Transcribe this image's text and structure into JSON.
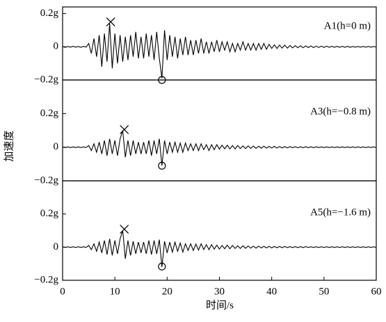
{
  "chart_data": [
    {
      "type": "line",
      "label": "A1(h=0 m)",
      "color": "#000000",
      "xlim": [
        0,
        60
      ],
      "ylim": [
        -0.2,
        0.24
      ],
      "yticks": [
        {
          "value": -0.2,
          "label": "−0.2g"
        },
        0,
        {
          "value": 0.2,
          "label": "0.2g"
        }
      ],
      "max_point": [
        9.2,
        0.15
      ],
      "min_point": [
        19,
        -0.2
      ],
      "x": [
        0,
        0.5,
        1,
        1.5,
        2,
        2.5,
        3,
        3.5,
        4,
        4.5,
        5,
        5.5,
        6,
        6.5,
        7,
        7.5,
        8,
        8.5,
        9,
        9.5,
        10,
        10.5,
        11,
        11.5,
        12,
        12.5,
        13,
        13.5,
        14,
        14.5,
        15,
        15.5,
        16,
        16.5,
        17,
        17.5,
        18,
        18.5,
        19,
        19.5,
        20,
        20.5,
        21,
        21.5,
        22,
        22.5,
        23,
        23.5,
        24,
        24.5,
        25,
        25.5,
        26,
        26.5,
        27,
        27.5,
        28,
        28.5,
        29,
        29.5,
        30,
        30.5,
        31,
        31.5,
        32,
        32.5,
        33,
        33.5,
        34,
        34.5,
        35,
        35.5,
        36,
        36.5,
        37,
        37.5,
        38,
        38.5,
        39,
        39.5,
        40,
        40.5,
        41,
        41.5,
        42,
        42.5,
        43,
        43.5,
        44,
        44.5,
        45,
        45.5,
        46,
        46.5,
        47,
        47.5,
        48,
        48.5,
        49,
        49.5,
        50,
        50.5,
        51,
        51.5,
        52,
        52.5,
        53,
        53.5,
        54,
        54.5,
        55,
        55.5,
        56,
        56.5,
        57,
        57.5,
        58,
        58.5,
        59,
        59.5,
        60
      ],
      "values": [
        0.002,
        -0.003,
        0.002,
        -0.002,
        0.003,
        -0.002,
        0.002,
        -0.003,
        0.003,
        -0.002,
        0.02,
        -0.04,
        0.05,
        -0.06,
        0.07,
        -0.12,
        0.08,
        -0.09,
        0.14,
        -0.13,
        0.08,
        -0.1,
        0.07,
        -0.09,
        0.06,
        -0.08,
        0.07,
        -0.06,
        0.09,
        -0.07,
        0.06,
        -0.07,
        0.08,
        -0.06,
        0.07,
        -0.08,
        0.09,
        -0.07,
        -0.19,
        0.1,
        -0.08,
        0.07,
        -0.06,
        0.06,
        -0.07,
        0.05,
        -0.05,
        0.06,
        -0.05,
        0.04,
        -0.05,
        0.04,
        -0.04,
        0.05,
        -0.04,
        0.03,
        -0.04,
        0.03,
        -0.03,
        0.04,
        -0.03,
        0.03,
        -0.02,
        0.03,
        -0.03,
        0.02,
        -0.03,
        0.02,
        -0.02,
        0.03,
        -0.02,
        0.02,
        -0.02,
        0.02,
        -0.02,
        0.02,
        -0.015,
        0.02,
        -0.015,
        0.015,
        -0.01,
        0.012,
        -0.01,
        0.01,
        -0.008,
        0.01,
        -0.008,
        0.008,
        -0.007,
        0.007,
        -0.006,
        0.006,
        -0.006,
        0.005,
        -0.005,
        0.005,
        -0.005,
        0.004,
        -0.004,
        0.004,
        -0.004,
        0.004,
        -0.003,
        0.003,
        -0.003,
        0.003,
        -0.003,
        0.003,
        -0.003,
        0.003,
        -0.003,
        0.002,
        -0.002,
        0.002,
        -0.002,
        0.002,
        -0.002,
        0.002,
        -0.002,
        0.002,
        -0.002
      ]
    },
    {
      "type": "line",
      "label": "A3(h=−0.8 m)",
      "color": "#000000",
      "ylabel": "加速度",
      "xlim": [
        0,
        60
      ],
      "ylim": [
        -0.2,
        0.4
      ],
      "yticks": [
        {
          "value": -0.2,
          "label": "−0.2g"
        },
        0,
        {
          "value": 0.2,
          "label": "0.2g"
        }
      ],
      "max_point": [
        11.8,
        0.105
      ],
      "min_point": [
        19,
        -0.11
      ],
      "x": [
        0,
        0.5,
        1,
        1.5,
        2,
        2.5,
        3,
        3.5,
        4,
        4.5,
        5,
        5.5,
        6,
        6.5,
        7,
        7.5,
        8,
        8.5,
        9,
        9.5,
        10,
        10.5,
        11,
        11.5,
        12,
        12.5,
        13,
        13.5,
        14,
        14.5,
        15,
        15.5,
        16,
        16.5,
        17,
        17.5,
        18,
        18.5,
        19,
        19.5,
        20,
        20.5,
        21,
        21.5,
        22,
        22.5,
        23,
        23.5,
        24,
        24.5,
        25,
        25.5,
        26,
        26.5,
        27,
        27.5,
        28,
        28.5,
        29,
        29.5,
        30,
        30.5,
        31,
        31.5,
        32,
        32.5,
        33,
        33.5,
        34,
        34.5,
        35,
        35.5,
        36,
        36.5,
        37,
        37.5,
        38,
        38.5,
        39,
        39.5,
        40,
        40.5,
        41,
        41.5,
        42,
        42.5,
        43,
        43.5,
        44,
        44.5,
        45,
        45.5,
        46,
        46.5,
        47,
        47.5,
        48,
        48.5,
        49,
        49.5,
        50,
        50.5,
        51,
        51.5,
        52,
        52.5,
        53,
        53.5,
        54,
        54.5,
        55,
        55.5,
        56,
        56.5,
        57,
        57.5,
        58,
        58.5,
        59,
        59.5,
        60
      ],
      "values": [
        0.002,
        -0.002,
        0.002,
        -0.002,
        0.002,
        -0.002,
        0.002,
        -0.002,
        0.002,
        -0.002,
        0.01,
        -0.02,
        0.02,
        -0.03,
        0.03,
        -0.04,
        0.04,
        -0.05,
        0.05,
        -0.04,
        0.04,
        -0.05,
        0.05,
        0.1,
        -0.06,
        0.04,
        -0.05,
        0.04,
        -0.04,
        0.03,
        -0.04,
        0.03,
        -0.04,
        0.04,
        -0.05,
        0.04,
        -0.04,
        0.05,
        -0.11,
        0.04,
        -0.04,
        0.03,
        -0.03,
        0.03,
        -0.03,
        0.025,
        -0.03,
        0.025,
        -0.02,
        0.02,
        -0.02,
        0.02,
        -0.02,
        0.02,
        -0.015,
        0.015,
        -0.02,
        0.015,
        -0.015,
        0.015,
        -0.012,
        0.012,
        -0.01,
        0.012,
        -0.01,
        0.01,
        -0.01,
        0.01,
        -0.008,
        0.008,
        -0.008,
        0.008,
        -0.007,
        0.007,
        -0.007,
        0.006,
        -0.006,
        0.006,
        -0.006,
        0.005,
        -0.005,
        0.005,
        -0.005,
        0.004,
        -0.004,
        0.004,
        -0.004,
        0.004,
        -0.003,
        0.003,
        -0.003,
        0.003,
        -0.003,
        0.003,
        -0.003,
        0.003,
        -0.003,
        0.003,
        -0.002,
        0.002,
        -0.002,
        0.002,
        -0.002,
        0.002,
        -0.002,
        0.002,
        -0.002,
        0.002,
        -0.002,
        0.002,
        -0.002,
        0.002,
        -0.002,
        0.002,
        -0.002,
        0.002,
        -0.002,
        0.002,
        -0.002,
        0.002,
        -0.002
      ]
    },
    {
      "type": "line",
      "label": "A5(h=−1.6 m)",
      "color": "#000000",
      "xlabel": "时间/s",
      "xlim": [
        0,
        60
      ],
      "ylim": [
        -0.2,
        0.4
      ],
      "xticks": [
        0,
        10,
        20,
        30,
        40,
        50,
        60
      ],
      "yticks": [
        {
          "value": -0.2,
          "label": "−0.2g"
        },
        0,
        {
          "value": 0.2,
          "label": "0.2g"
        }
      ],
      "max_point": [
        11.8,
        0.108
      ],
      "min_point": [
        19,
        -0.117
      ],
      "x": [
        0,
        0.5,
        1,
        1.5,
        2,
        2.5,
        3,
        3.5,
        4,
        4.5,
        5,
        5.5,
        6,
        6.5,
        7,
        7.5,
        8,
        8.5,
        9,
        9.5,
        10,
        10.5,
        11,
        11.5,
        12,
        12.5,
        13,
        13.5,
        14,
        14.5,
        15,
        15.5,
        16,
        16.5,
        17,
        17.5,
        18,
        18.5,
        19,
        19.5,
        20,
        20.5,
        21,
        21.5,
        22,
        22.5,
        23,
        23.5,
        24,
        24.5,
        25,
        25.5,
        26,
        26.5,
        27,
        27.5,
        28,
        28.5,
        29,
        29.5,
        30,
        30.5,
        31,
        31.5,
        32,
        32.5,
        33,
        33.5,
        34,
        34.5,
        35,
        35.5,
        36,
        36.5,
        37,
        37.5,
        38,
        38.5,
        39,
        39.5,
        40,
        40.5,
        41,
        41.5,
        42,
        42.5,
        43,
        43.5,
        44,
        44.5,
        45,
        45.5,
        46,
        46.5,
        47,
        47.5,
        48,
        48.5,
        49,
        49.5,
        50,
        50.5,
        51,
        51.5,
        52,
        52.5,
        53,
        53.5,
        54,
        54.5,
        55,
        55.5,
        56,
        56.5,
        57,
        57.5,
        58,
        58.5,
        59,
        59.5,
        60
      ],
      "values": [
        0.002,
        -0.002,
        0.002,
        -0.002,
        0.002,
        -0.002,
        0.002,
        -0.002,
        0.002,
        -0.002,
        0.01,
        -0.015,
        0.02,
        -0.025,
        0.03,
        -0.035,
        0.04,
        -0.045,
        0.05,
        -0.05,
        0.04,
        -0.04,
        0.05,
        0.1,
        -0.07,
        0.04,
        -0.05,
        0.035,
        -0.04,
        0.03,
        -0.035,
        0.03,
        -0.04,
        0.04,
        -0.045,
        0.04,
        -0.04,
        0.045,
        -0.12,
        0.035,
        -0.035,
        0.03,
        -0.03,
        0.03,
        -0.025,
        0.025,
        -0.03,
        0.02,
        -0.02,
        0.02,
        -0.02,
        0.018,
        -0.018,
        0.02,
        -0.015,
        0.015,
        -0.015,
        0.015,
        -0.012,
        0.012,
        -0.012,
        0.01,
        -0.01,
        0.012,
        -0.01,
        0.01,
        -0.008,
        0.008,
        -0.008,
        0.008,
        -0.007,
        0.007,
        -0.006,
        0.006,
        -0.006,
        0.006,
        -0.005,
        0.005,
        -0.005,
        0.005,
        -0.005,
        0.004,
        -0.004,
        0.004,
        -0.004,
        0.004,
        -0.003,
        0.003,
        -0.003,
        0.003,
        -0.003,
        0.003,
        -0.003,
        0.003,
        -0.002,
        0.002,
        -0.002,
        0.002,
        -0.002,
        0.002,
        -0.002,
        0.002,
        -0.002,
        0.002,
        -0.002,
        0.002,
        -0.002,
        0.002,
        -0.002,
        0.002,
        -0.002,
        0.002,
        -0.002,
        0.002,
        -0.002,
        0.002,
        -0.002,
        0.002,
        -0.002,
        0.002,
        -0.002
      ]
    }
  ]
}
